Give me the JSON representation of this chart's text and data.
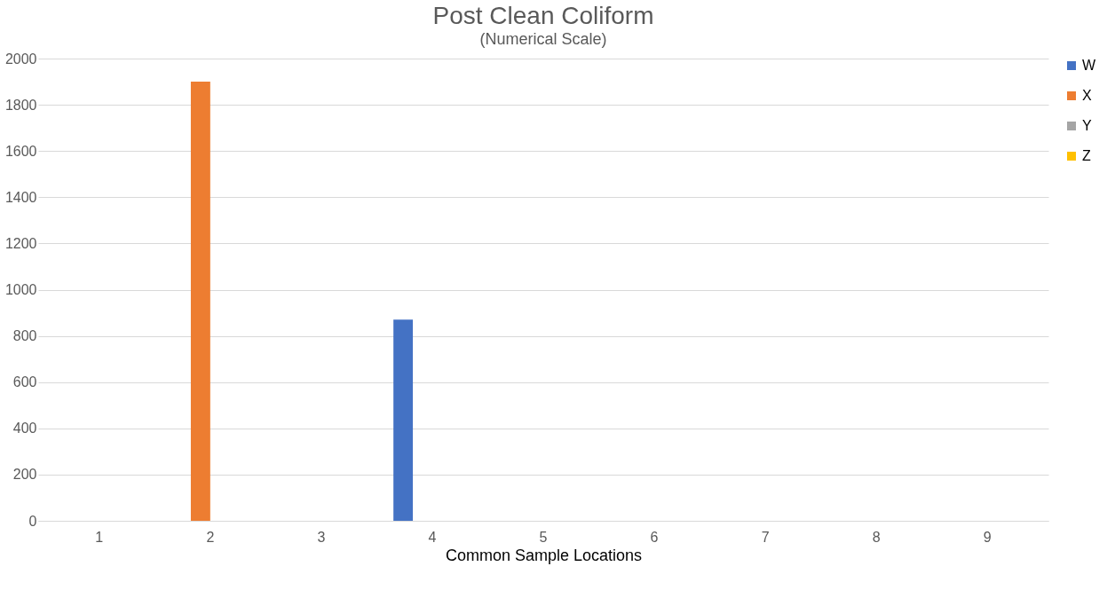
{
  "chart_data": {
    "type": "bar",
    "title": "Post Clean Coliform",
    "subtitle": "(Numerical Scale)",
    "xlabel": "Common Sample Locations",
    "categories": [
      "1",
      "2",
      "3",
      "4",
      "5",
      "6",
      "7",
      "8",
      "9"
    ],
    "series": [
      {
        "name": "W",
        "color": "#4472c4",
        "values": [
          0,
          0,
          0,
          870,
          0,
          0,
          0,
          0,
          0
        ]
      },
      {
        "name": "X",
        "color": "#ed7d31",
        "values": [
          0,
          1900,
          0,
          0,
          0,
          0,
          0,
          0,
          0
        ]
      },
      {
        "name": "Y",
        "color": "#a5a5a5",
        "values": [
          0,
          0,
          0,
          0,
          0,
          0,
          0,
          0,
          0
        ]
      },
      {
        "name": "Z",
        "color": "#ffc000",
        "values": [
          0,
          0,
          0,
          0,
          0,
          0,
          0,
          0,
          0
        ]
      }
    ],
    "ylim": [
      0,
      2000
    ],
    "yticks": [
      0,
      200,
      400,
      600,
      800,
      1000,
      1200,
      1400,
      1600,
      1800,
      2000
    ],
    "grid": "y",
    "legend": "right"
  }
}
